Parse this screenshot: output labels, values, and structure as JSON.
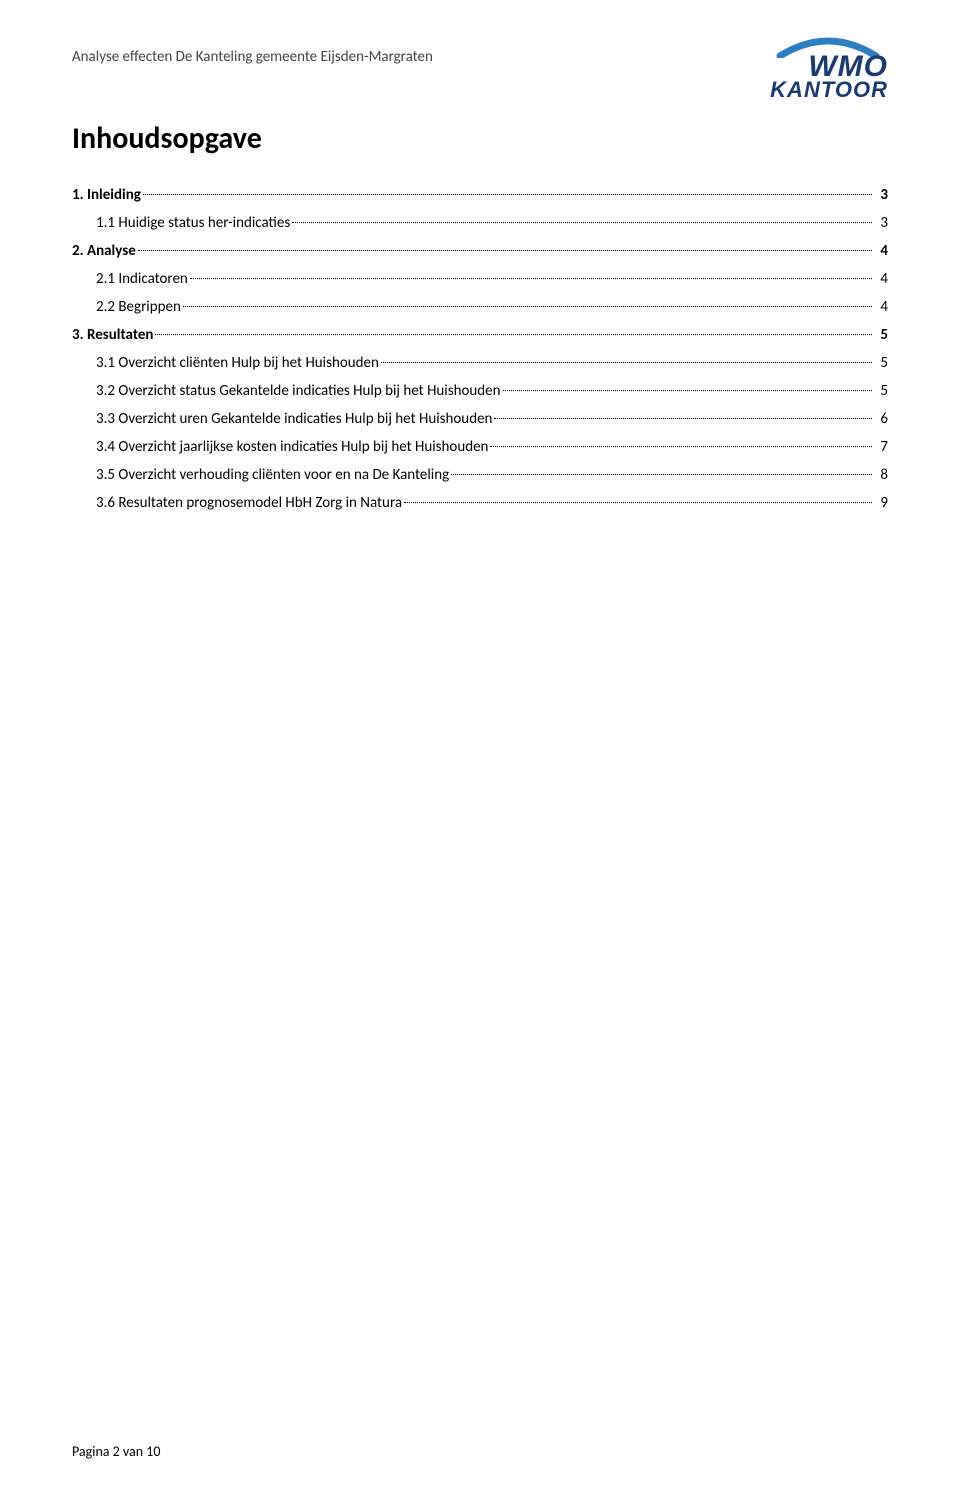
{
  "header": {
    "doc_line": "Analyse effecten De Kanteling gemeente Eijsden-Margraten"
  },
  "logo": {
    "line1": "WMO",
    "line2": "KANTOOR",
    "text_color": "#1b3b6f",
    "arc_color": "#2e7ec2"
  },
  "title": "Inhoudsopgave",
  "toc": [
    {
      "label": "1. Inleiding",
      "page": "3",
      "bold": true,
      "indent": false
    },
    {
      "label": "1.1 Huidige status her-indicaties",
      "page": "3",
      "bold": false,
      "indent": true
    },
    {
      "label": "2. Analyse",
      "page": "4",
      "bold": true,
      "indent": false
    },
    {
      "label": "2.1 Indicatoren",
      "page": "4",
      "bold": false,
      "indent": true
    },
    {
      "label": "2.2 Begrippen",
      "page": "4",
      "bold": false,
      "indent": true
    },
    {
      "label": "3. Resultaten",
      "page": "5",
      "bold": true,
      "indent": false
    },
    {
      "label": "3.1 Overzicht cliënten Hulp bij het Huishouden",
      "page": "5",
      "bold": false,
      "indent": true
    },
    {
      "label": "3.2 Overzicht status Gekantelde indicaties Hulp bij het Huishouden",
      "page": "5",
      "bold": false,
      "indent": true
    },
    {
      "label": "3.3 Overzicht uren Gekantelde indicaties Hulp bij het Huishouden",
      "page": "6",
      "bold": false,
      "indent": true
    },
    {
      "label": "3.4 Overzicht jaarlijkse kosten indicaties Hulp bij het Huishouden",
      "page": "7",
      "bold": false,
      "indent": true
    },
    {
      "label": "3.5 Overzicht verhouding cliënten voor en na De Kanteling",
      "page": "8",
      "bold": false,
      "indent": true
    },
    {
      "label": "3.6 Resultaten prognosemodel HbH Zorg in Natura",
      "page": "9",
      "bold": false,
      "indent": true
    }
  ],
  "footer": "Pagina 2 van 10",
  "colors": {
    "text": "#000000",
    "background": "#ffffff",
    "header_text": "#444444"
  },
  "typography": {
    "body_font": "Calibri",
    "title_size_pt": 22,
    "body_size_pt": 11
  }
}
